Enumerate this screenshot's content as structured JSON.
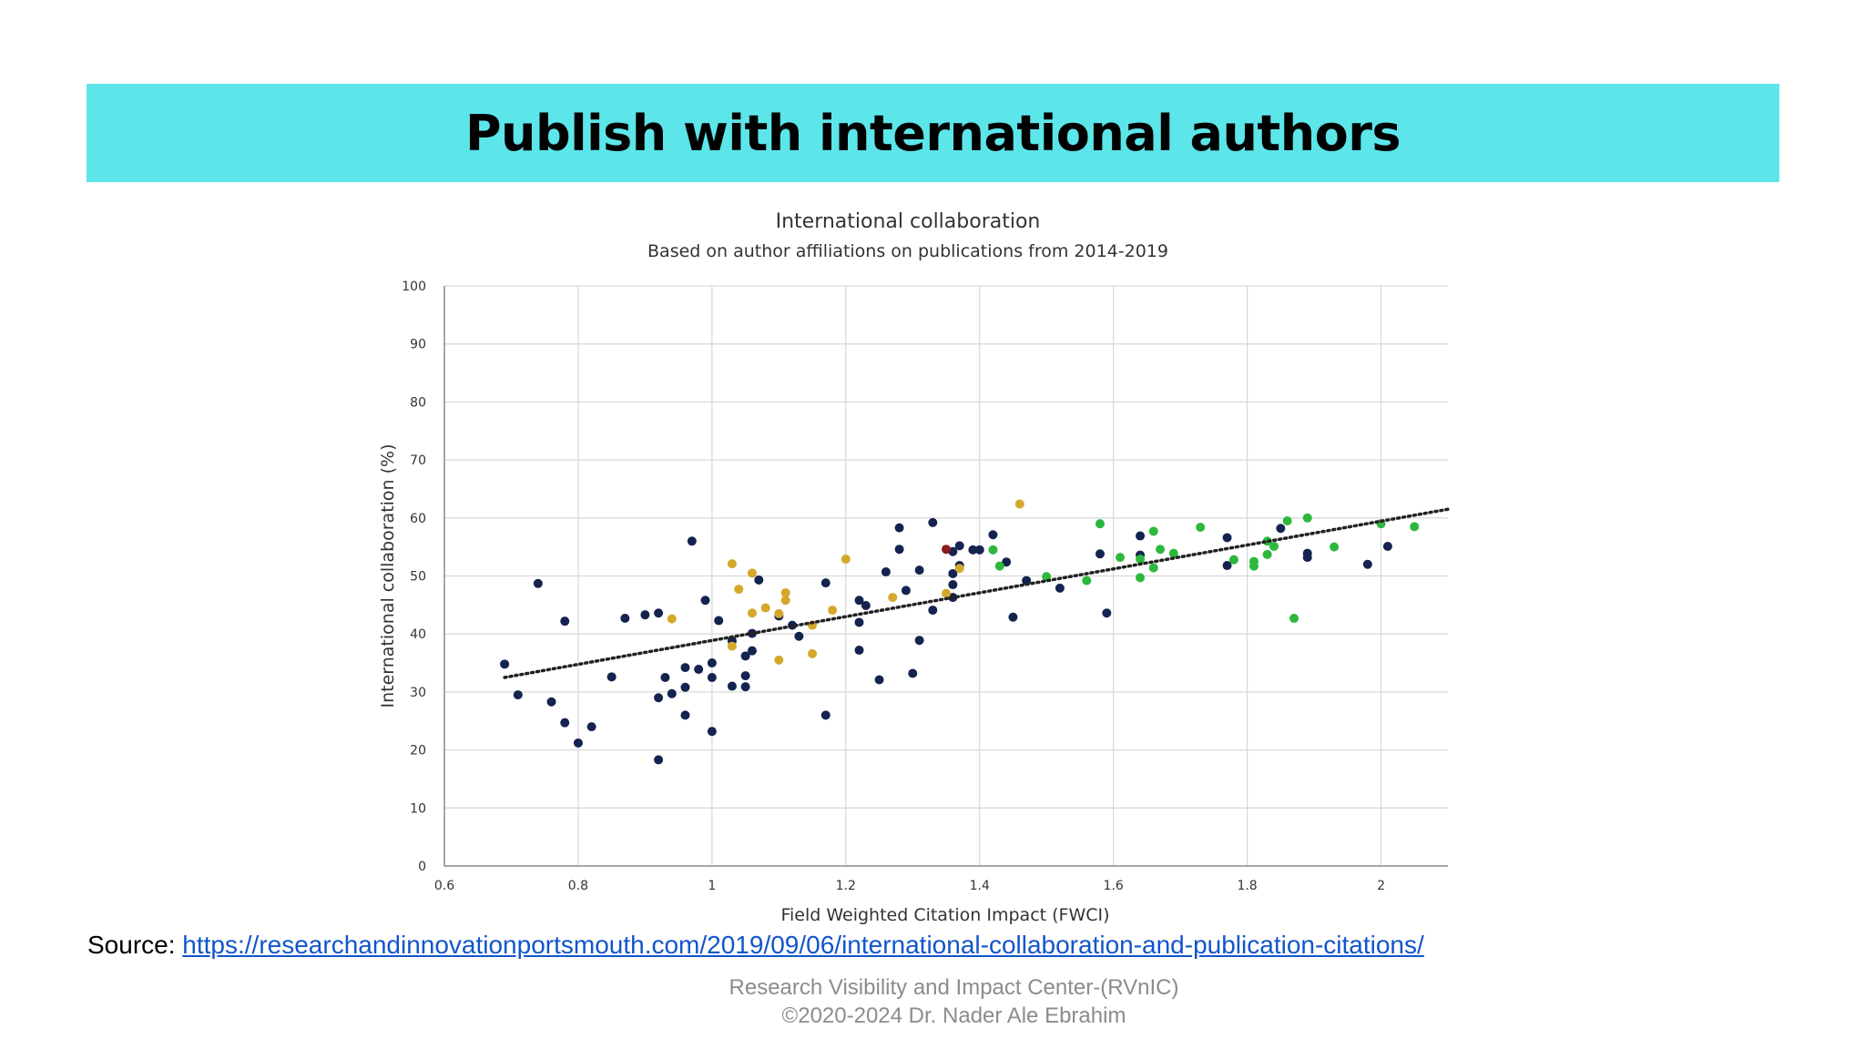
{
  "slide": {
    "title": "Publish with international authors",
    "source_label": "Source:",
    "source_url": "https://researchandinnovationportsmouth.com/2019/09/06/international-collaboration-and-publication-citations/",
    "footer_line1": "Research Visibility and Impact Center-(RVnIC)",
    "footer_line2": "©2020-2024 Dr. Nader Ale Ebrahim",
    "banner_color": "#5ce6ea",
    "link_color": "#1155cc"
  },
  "chart_data": {
    "type": "scatter",
    "title": "International collaboration",
    "subtitle": "Based on author affiliations on publications from 2014-2019",
    "xlabel": "Field Weighted Citation Impact (FWCI)",
    "ylabel": "International collaboration (%)",
    "xlim": [
      0.6,
      2.1
    ],
    "ylim": [
      0,
      100
    ],
    "xticks": [
      0.6,
      0.8,
      1,
      1.2,
      1.4,
      1.6,
      1.8,
      2
    ],
    "xtick_labels": [
      "0.6",
      "0.8",
      "1",
      "1.2",
      "1.4",
      "1.6",
      "1.8",
      "2"
    ],
    "yticks": [
      0,
      10,
      20,
      30,
      40,
      50,
      60,
      70,
      80,
      90,
      100
    ],
    "ytick_labels": [
      "0",
      "10",
      "20",
      "30",
      "40",
      "50",
      "60",
      "70",
      "80",
      "90",
      "100"
    ],
    "grid": true,
    "trendline": {
      "style": "dotted",
      "color": "#222222",
      "x": [
        0.69,
        2.1
      ],
      "y": [
        32.5,
        61.5
      ]
    },
    "series": [
      {
        "color": "#14234f",
        "points": [
          [
            0.69,
            34.8
          ],
          [
            0.71,
            29.5
          ],
          [
            0.74,
            48.7
          ],
          [
            0.76,
            28.3
          ],
          [
            0.78,
            42.2
          ],
          [
            0.78,
            24.7
          ],
          [
            0.8,
            21.2
          ],
          [
            0.82,
            24.0
          ],
          [
            0.85,
            32.6
          ],
          [
            0.87,
            42.7
          ],
          [
            0.9,
            43.3
          ],
          [
            0.92,
            43.6
          ],
          [
            0.92,
            29.0
          ],
          [
            0.92,
            18.3
          ],
          [
            0.93,
            32.5
          ],
          [
            0.94,
            29.7
          ],
          [
            0.96,
            30.8
          ],
          [
            0.96,
            34.2
          ],
          [
            0.96,
            26.0
          ],
          [
            0.97,
            56.0
          ],
          [
            0.98,
            33.9
          ],
          [
            0.99,
            45.8
          ],
          [
            1.0,
            32.5
          ],
          [
            1.0,
            35.0
          ],
          [
            1.0,
            23.2
          ],
          [
            1.01,
            42.3
          ],
          [
            1.03,
            31.0
          ],
          [
            1.03,
            38.8
          ],
          [
            1.05,
            36.2
          ],
          [
            1.05,
            32.8
          ],
          [
            1.05,
            30.9
          ],
          [
            1.06,
            37.1
          ],
          [
            1.06,
            40.1
          ],
          [
            1.07,
            49.3
          ],
          [
            1.1,
            43.1
          ],
          [
            1.12,
            41.5
          ],
          [
            1.13,
            39.6
          ],
          [
            1.17,
            48.8
          ],
          [
            1.17,
            26.0
          ],
          [
            1.22,
            45.8
          ],
          [
            1.22,
            42.0
          ],
          [
            1.22,
            37.2
          ],
          [
            1.23,
            44.9
          ],
          [
            1.25,
            32.1
          ],
          [
            1.26,
            50.7
          ],
          [
            1.28,
            58.3
          ],
          [
            1.28,
            54.6
          ],
          [
            1.29,
            47.5
          ],
          [
            1.3,
            33.2
          ],
          [
            1.31,
            51.0
          ],
          [
            1.31,
            38.9
          ],
          [
            1.33,
            59.2
          ],
          [
            1.33,
            44.1
          ],
          [
            1.36,
            54.2
          ],
          [
            1.36,
            48.5
          ],
          [
            1.36,
            46.3
          ],
          [
            1.36,
            50.4
          ],
          [
            1.37,
            55.2
          ],
          [
            1.37,
            51.8
          ],
          [
            1.39,
            54.5
          ],
          [
            1.4,
            54.5
          ],
          [
            1.42,
            57.1
          ],
          [
            1.44,
            52.4
          ],
          [
            1.45,
            42.9
          ],
          [
            1.47,
            49.2
          ],
          [
            1.52,
            47.9
          ],
          [
            1.58,
            53.8
          ],
          [
            1.59,
            43.6
          ],
          [
            1.64,
            56.9
          ],
          [
            1.64,
            53.6
          ],
          [
            1.77,
            56.6
          ],
          [
            1.77,
            51.8
          ],
          [
            1.85,
            58.2
          ],
          [
            1.89,
            53.9
          ],
          [
            1.89,
            53.2
          ],
          [
            1.98,
            52.0
          ],
          [
            2.01,
            55.1
          ]
        ]
      },
      {
        "color": "#d4a82a",
        "points": [
          [
            0.94,
            42.6
          ],
          [
            1.03,
            52.1
          ],
          [
            1.03,
            37.9
          ],
          [
            1.04,
            47.7
          ],
          [
            1.06,
            50.5
          ],
          [
            1.06,
            43.6
          ],
          [
            1.08,
            44.5
          ],
          [
            1.1,
            43.5
          ],
          [
            1.1,
            35.5
          ],
          [
            1.11,
            47.1
          ],
          [
            1.11,
            45.8
          ],
          [
            1.15,
            41.5
          ],
          [
            1.15,
            36.6
          ],
          [
            1.18,
            44.1
          ],
          [
            1.2,
            52.9
          ],
          [
            1.27,
            46.3
          ],
          [
            1.35,
            47.0
          ],
          [
            1.37,
            51.3
          ],
          [
            1.46,
            62.4
          ]
        ]
      },
      {
        "color": "#8b1a1a",
        "points": [
          [
            1.35,
            54.6
          ]
        ]
      },
      {
        "color": "#2db83d",
        "points": [
          [
            1.42,
            54.5
          ],
          [
            1.43,
            51.7
          ],
          [
            1.5,
            49.9
          ],
          [
            1.56,
            49.2
          ],
          [
            1.58,
            59.0
          ],
          [
            1.61,
            53.2
          ],
          [
            1.64,
            52.9
          ],
          [
            1.64,
            49.7
          ],
          [
            1.66,
            57.7
          ],
          [
            1.66,
            51.4
          ],
          [
            1.67,
            54.6
          ],
          [
            1.69,
            53.9
          ],
          [
            1.73,
            58.4
          ],
          [
            1.78,
            52.8
          ],
          [
            1.81,
            52.5
          ],
          [
            1.81,
            51.7
          ],
          [
            1.83,
            56.0
          ],
          [
            1.83,
            53.7
          ],
          [
            1.84,
            55.1
          ],
          [
            1.86,
            59.5
          ],
          [
            1.87,
            42.7
          ],
          [
            1.89,
            60.0
          ],
          [
            1.93,
            55.0
          ],
          [
            2.0,
            59.0
          ],
          [
            2.05,
            58.5
          ]
        ]
      }
    ]
  }
}
